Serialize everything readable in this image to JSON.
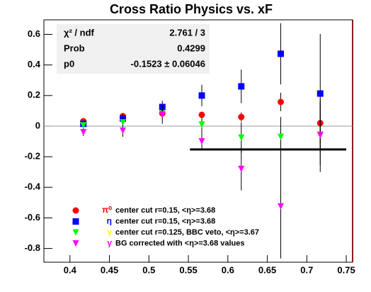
{
  "chart_data": {
    "type": "errorbar",
    "title": "Cross Ratio Physics vs. xF",
    "x": [
      0.417,
      0.467,
      0.517,
      0.567,
      0.617,
      0.667,
      0.717
    ],
    "xlim": [
      0.367,
      0.758
    ],
    "xticks": [
      0.4,
      0.45,
      0.5,
      0.55,
      0.6,
      0.65,
      0.7,
      0.75
    ],
    "ylim": [
      -0.89,
      0.695
    ],
    "yticks": [
      -0.8,
      -0.6,
      -0.4,
      -0.2,
      0,
      0.2,
      0.4,
      0.6
    ],
    "zero_line": true,
    "series": [
      {
        "name": "center cut r=0.15, <η>=3.68",
        "symbol": "π⁰",
        "color": "#ff0000",
        "marker": "circle",
        "values": [
          0.032,
          0.065,
          0.083,
          0.074,
          0.06,
          0.158,
          0.02
        ],
        "errors": [
          0.015,
          0.02,
          0.02,
          0.02,
          0.03,
          0.06,
          0.14
        ]
      },
      {
        "name": "center cut r=0.15, <η>=3.68",
        "symbol": "η",
        "color": "#0000ff",
        "marker": "square",
        "values": [
          0.015,
          0.05,
          0.125,
          0.2,
          0.26,
          0.473,
          0.213
        ],
        "errors": [
          0.02,
          0.03,
          0.04,
          0.07,
          0.11,
          0.2,
          0.39
        ]
      },
      {
        "name": "center cut r=0.125, BBC veto, <η>=3.67",
        "symbol": "γ",
        "color": "#00ff00",
        "symbol_color": "#ffff00",
        "marker": "triangle-down",
        "values": [
          0.005,
          0.025,
          0.08,
          0.01,
          -0.075,
          -0.07,
          -0.055
        ],
        "errors": [
          0.02,
          0.03,
          0.03,
          0.05,
          0.1,
          0.13,
          0.2
        ]
      },
      {
        "name": "BG corrected with <η>=3.68 values",
        "symbol": "γ",
        "color": "#ff00ff",
        "marker": "triangle-down",
        "values": [
          -0.04,
          -0.03,
          0.075,
          -0.1,
          -0.28,
          -0.525,
          -0.06
        ],
        "errors": [
          0.025,
          0.04,
          0.06,
          0.06,
          0.14,
          0.34,
          0.24
        ]
      }
    ],
    "fit": {
      "value": -0.1523,
      "x_start": 0.552,
      "x_end": 0.75
    },
    "stats": [
      [
        "χ² / ndf",
        "2.761 / 3"
      ],
      [
        "Prob",
        "0.4299"
      ],
      [
        "p0",
        "-0.1523 ± 0.06046"
      ]
    ]
  }
}
